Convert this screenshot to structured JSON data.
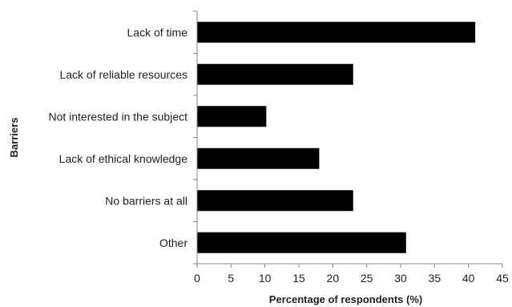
{
  "chart_data": {
    "type": "bar",
    "orientation": "horizontal",
    "categories": [
      "Lack of time",
      "Lack of reliable resources",
      "Not interested in the subject",
      "Lack of ethical knowledge",
      "No barriers at all",
      "Other"
    ],
    "values": [
      41,
      23,
      10.2,
      18,
      23,
      30.8
    ],
    "xlabel": "Percentage of respondents (%)",
    "ylabel": "Barriers",
    "xlim": [
      0,
      45
    ],
    "xticks": [
      0,
      5,
      10,
      15,
      20,
      25,
      30,
      35,
      40,
      45
    ],
    "grid": false,
    "legend": "none",
    "bar_color": "#000000"
  }
}
